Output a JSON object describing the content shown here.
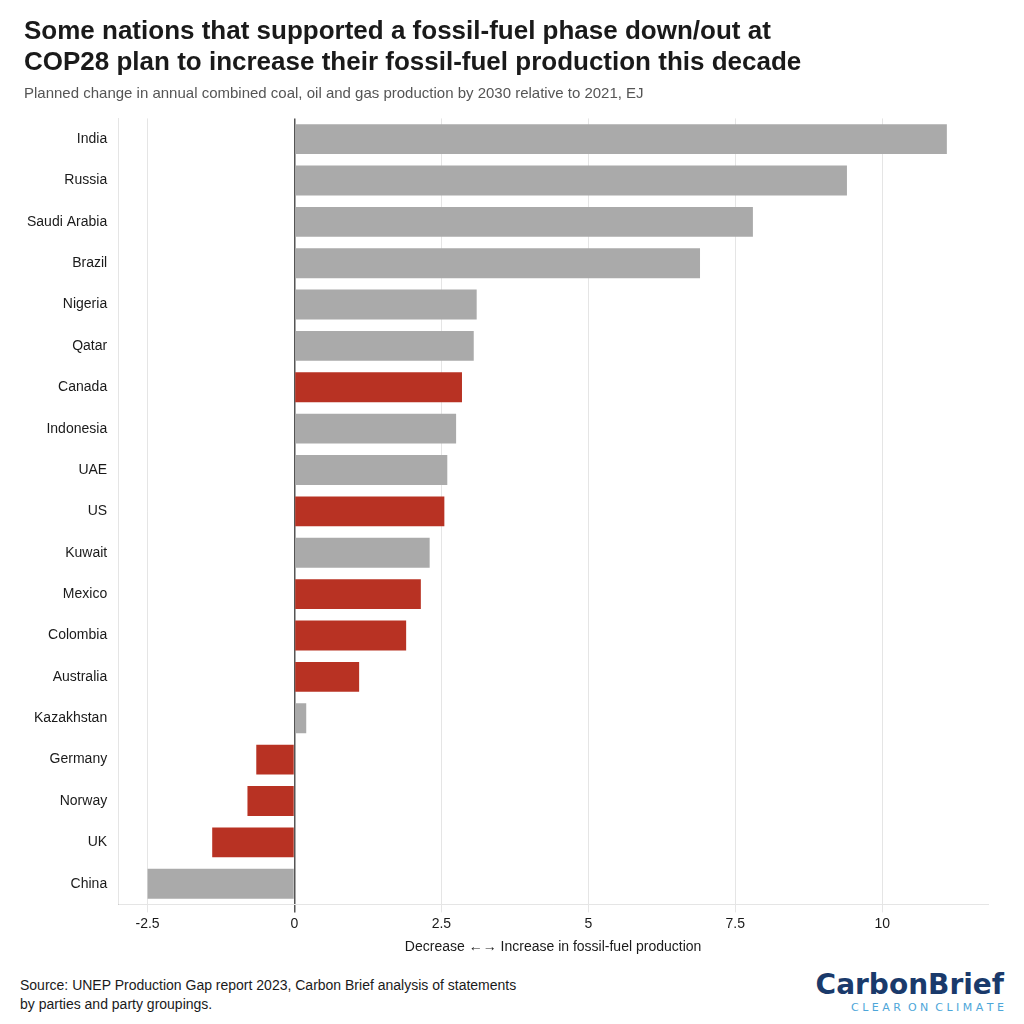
{
  "chart_data": {
    "type": "bar",
    "orientation": "horizontal",
    "title": [
      "Some nations that supported a fossil-fuel phase down/out at",
      "COP28 plan to increase their fossil-fuel production this decade"
    ],
    "subtitle": "Planned change in annual combined coal, oil and gas production by 2030 relative to 2021, EJ",
    "xlabel": "Decrease ←→ Increase in fossil-fuel production",
    "categories": [
      "India",
      "Russia",
      "Saudi Arabia",
      "Brazil",
      "Nigeria",
      "Qatar",
      "Canada",
      "Indonesia",
      "UAE",
      "US",
      "Kuwait",
      "Mexico",
      "Colombia",
      "Australia",
      "Kazakhstan",
      "Germany",
      "Norway",
      "UK",
      "China"
    ],
    "values": [
      11.1,
      9.4,
      7.8,
      6.9,
      3.1,
      3.05,
      2.85,
      2.75,
      2.6,
      2.55,
      2.3,
      2.15,
      1.9,
      1.1,
      0.2,
      -0.65,
      -0.8,
      -1.4,
      -2.5
    ],
    "colors": [
      "#aaaaaa",
      "#aaaaaa",
      "#aaaaaa",
      "#aaaaaa",
      "#aaaaaa",
      "#aaaaaa",
      "#b83223",
      "#aaaaaa",
      "#aaaaaa",
      "#b83223",
      "#aaaaaa",
      "#b83223",
      "#b83223",
      "#b83223",
      "#aaaaaa",
      "#b83223",
      "#b83223",
      "#b83223",
      "#aaaaaa"
    ],
    "xlim": [
      -3.0,
      11.8
    ],
    "xticks": [
      -2.5,
      0,
      2.5,
      5,
      7.5,
      10
    ],
    "grid": true,
    "annotations": [
      "Source: UNEP Production Gap report 2023, Carbon Brief analysis of statements\nby parties and party groupings.",
      "CarbonBrief",
      "C L E A R  O N  C L I M A T E"
    ]
  }
}
